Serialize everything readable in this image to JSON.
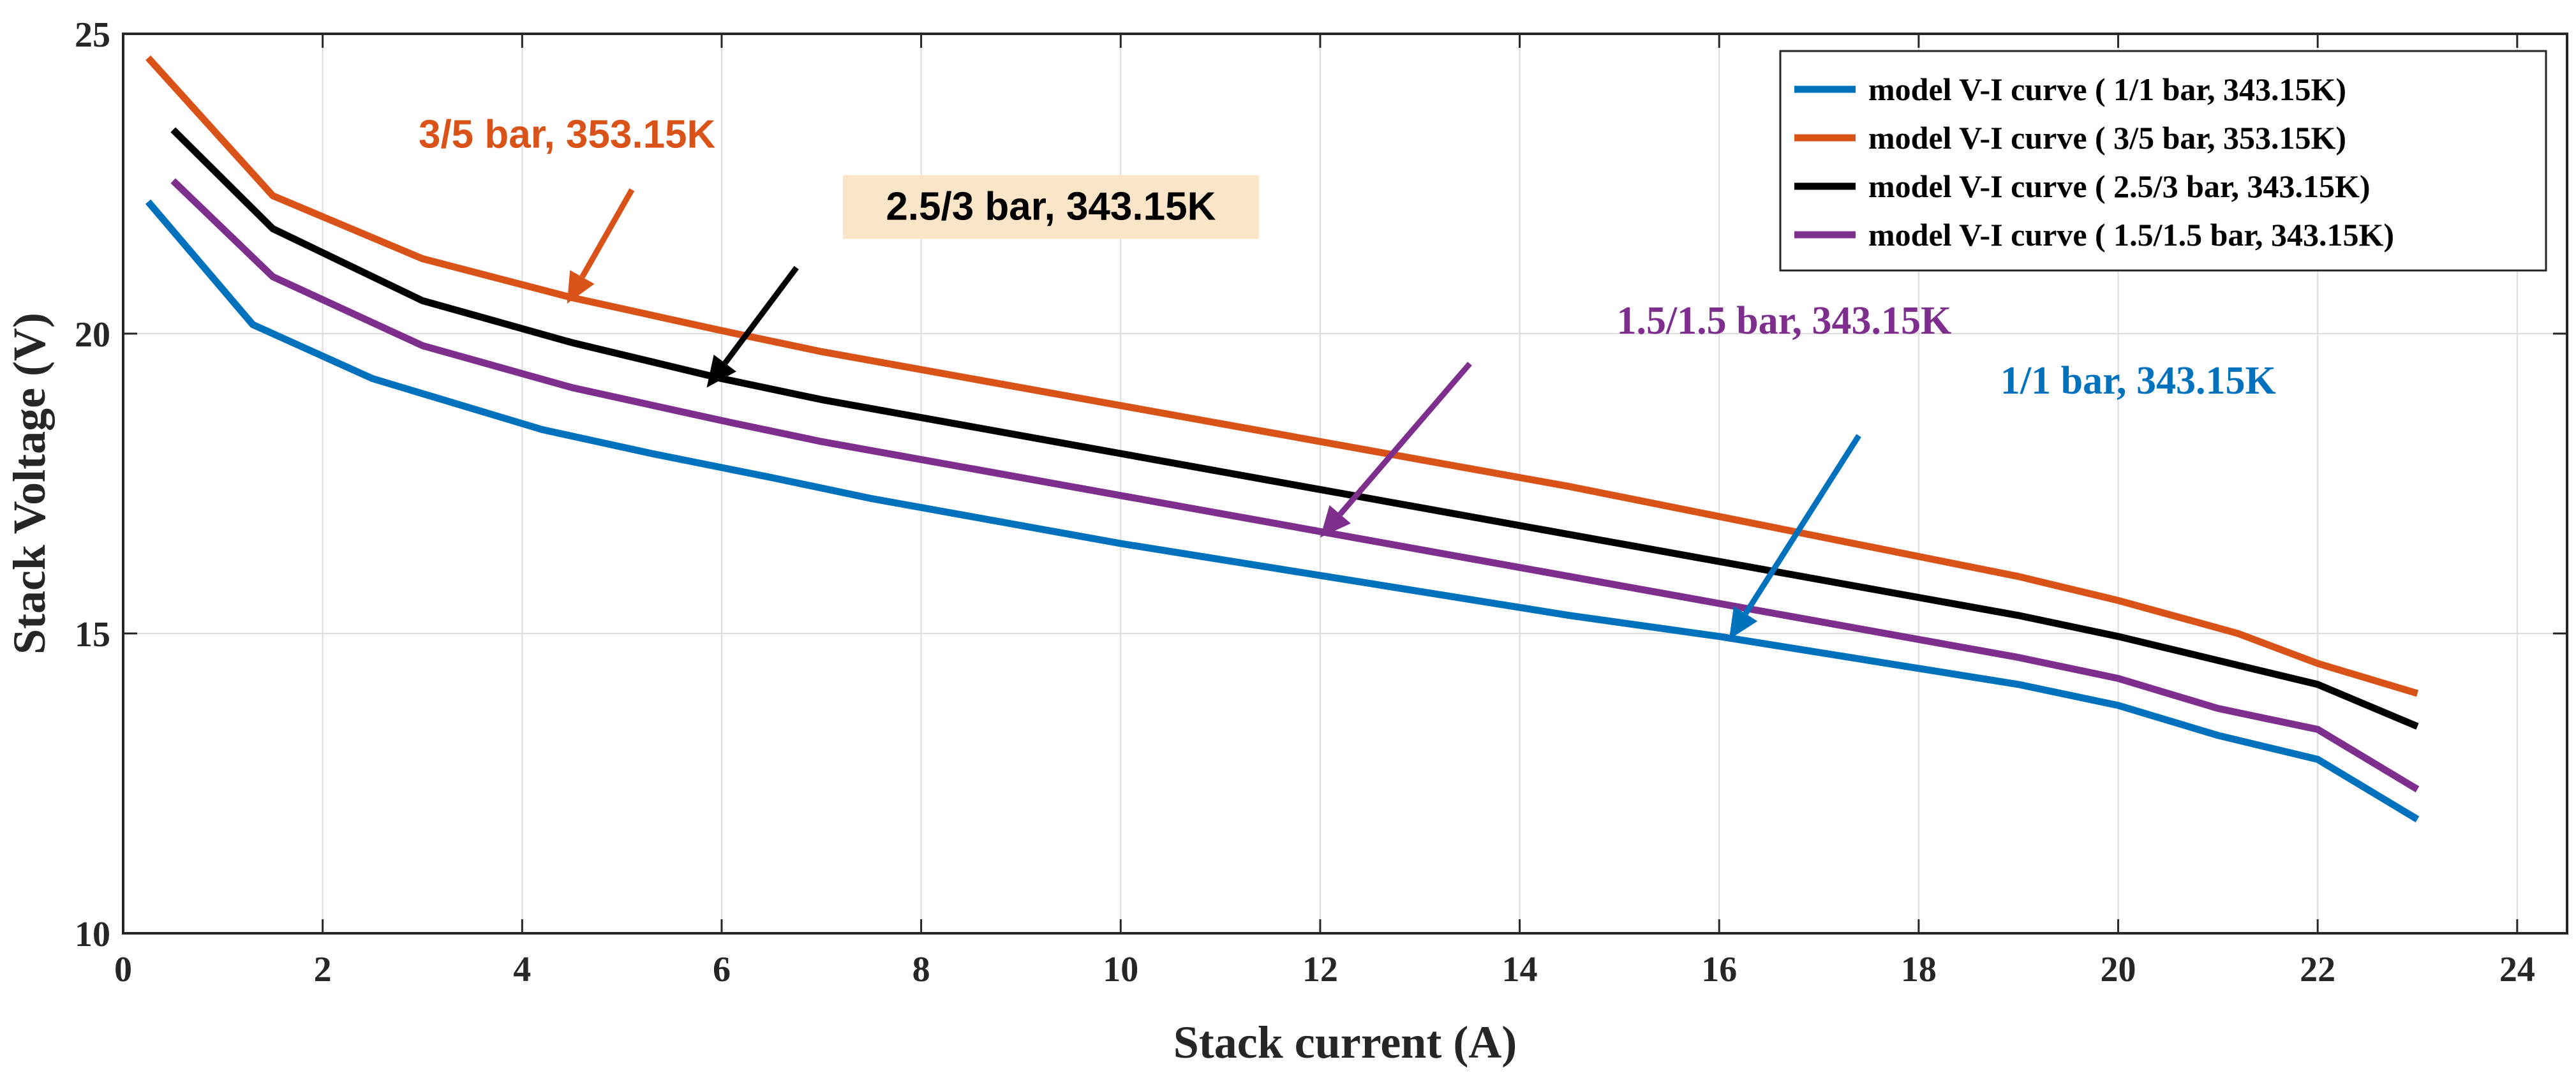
{
  "chart_data": {
    "type": "line",
    "xlabel": "Stack current (A)",
    "ylabel": "Stack Voltage (V)",
    "xlim": [
      0,
      24.5
    ],
    "ylim": [
      10,
      25
    ],
    "xticks": [
      0,
      2,
      4,
      6,
      8,
      10,
      12,
      14,
      16,
      18,
      20,
      22,
      24
    ],
    "yticks": [
      10,
      15,
      20,
      25
    ],
    "grid": true,
    "legend_position": "top-right",
    "series": [
      {
        "name": "model V-I curve ( 1/1 bar, 343.15K)",
        "color": "#0072BD",
        "x": [
          0.25,
          1.3,
          2.5,
          3.1,
          4.2,
          5.3,
          6.5,
          7.5,
          8.5,
          10,
          11.5,
          13,
          14.5,
          16,
          17.5,
          19,
          20,
          21,
          22,
          23
        ],
        "y": [
          22.2,
          20.15,
          19.25,
          18.95,
          18.4,
          18.0,
          17.6,
          17.25,
          16.95,
          16.5,
          16.1,
          15.7,
          15.3,
          14.95,
          14.55,
          14.15,
          13.8,
          13.3,
          12.9,
          11.9
        ]
      },
      {
        "name": "model V-I curve ( 3/5 bar, 353.15K)",
        "color": "#D95319",
        "x": [
          0.25,
          1.5,
          3,
          4.5,
          6,
          7,
          8.5,
          10,
          11.5,
          13,
          14.5,
          16,
          17.5,
          19,
          20,
          21.2,
          22,
          23
        ],
        "y": [
          24.6,
          22.3,
          21.25,
          20.6,
          20.05,
          19.7,
          19.25,
          18.8,
          18.35,
          17.9,
          17.45,
          16.95,
          16.45,
          15.95,
          15.55,
          15.0,
          14.5,
          14.0
        ]
      },
      {
        "name": "model V-I curve ( 2.5/3 bar, 343.15K)",
        "color": "#000000",
        "x": [
          0.5,
          1.5,
          3,
          4.5,
          6,
          7,
          8.5,
          10,
          11.5,
          13,
          14.5,
          16,
          17.5,
          19,
          20,
          21,
          22,
          23
        ],
        "y": [
          23.4,
          21.75,
          20.55,
          19.85,
          19.25,
          18.9,
          18.45,
          18.0,
          17.55,
          17.1,
          16.65,
          16.2,
          15.75,
          15.3,
          14.95,
          14.55,
          14.15,
          13.45
        ]
      },
      {
        "name": "model V-I curve ( 1.5/1.5 bar, 343.15K)",
        "color": "#7E2F8E",
        "x": [
          0.5,
          1.5,
          3,
          4.5,
          6,
          7,
          8.5,
          10,
          11.5,
          13,
          14.5,
          16,
          17.5,
          19,
          20,
          21,
          22,
          23
        ],
        "y": [
          22.55,
          20.95,
          19.8,
          19.1,
          18.55,
          18.2,
          17.75,
          17.3,
          16.85,
          16.4,
          15.95,
          15.5,
          15.05,
          14.6,
          14.25,
          13.75,
          13.4,
          12.4
        ]
      }
    ],
    "annotations": [
      {
        "text": "3/5 bar, 353.15K",
        "color": "#D95319",
        "style": "sans",
        "highlight": "",
        "point": [
          4.45,
          20.5
        ],
        "from": [
          5.1,
          22.4
        ],
        "label": [
          4.45,
          23.1
        ]
      },
      {
        "text": "2.5/3 bar, 343.15K",
        "color": "#000000",
        "style": "sans",
        "highlight": "#FBE5C8",
        "point": [
          5.85,
          19.1
        ],
        "from": [
          6.75,
          21.1
        ],
        "label": [
          9.3,
          21.9
        ]
      },
      {
        "text": "1.5/1.5 bar, 343.15K",
        "color": "#7E2F8E",
        "style": "serif",
        "highlight": "",
        "point": [
          12.0,
          16.6
        ],
        "from": [
          13.5,
          19.5
        ],
        "label": [
          16.65,
          20.0
        ]
      },
      {
        "text": "1/1 bar, 343.15K",
        "color": "#0072BD",
        "style": "serif",
        "highlight": "",
        "point": [
          16.1,
          14.9
        ],
        "from": [
          17.4,
          18.3
        ],
        "label": [
          20.2,
          19.0
        ]
      }
    ]
  }
}
